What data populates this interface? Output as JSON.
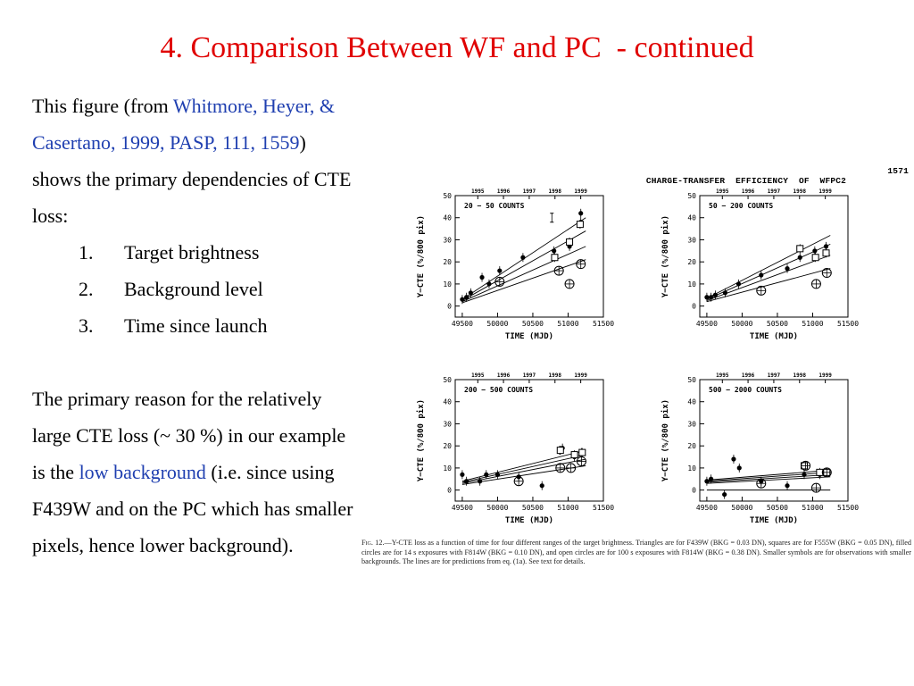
{
  "slide": {
    "title": "4. Comparison Between WF and PC  - continued",
    "intro_before": "This figure (from ",
    "intro_link": "Whitmore, Heyer, & Casertano, 1999, PASP, 111, 1559",
    "intro_after": ") shows the primary dependencies of CTE loss:",
    "list": [
      {
        "num": "1.",
        "text": "Target brightness"
      },
      {
        "num": "2.",
        "text": "Background level"
      },
      {
        "num": "3.",
        "text": "Time since launch"
      }
    ],
    "reason_before": "The primary reason for the relatively large CTE loss (~ 30 %) in our example is the ",
    "reason_link": "low background",
    "reason_after": " (i.e. since using F439W and on the PC which has smaller pixels, hence lower background).",
    "colors": {
      "title": "#e00000",
      "link": "#1f3fb0"
    }
  },
  "paper": {
    "header": "CHARGE-TRANSFER  EFFICIENCY  OF  WFPC2",
    "page": "1571",
    "caption_label": "Fig. 12.",
    "caption": "—Y-CTE loss as a function of time for four different ranges of the target brightness. Triangles are for F439W (BKG = 0.03 DN), squares are for F555W (BKG = 0.05 DN), filled circles are for 14 s exposures with F814W (BKG = 0.10 DN), and open circles are for 100 s exposures with F814W (BKG = 0.38 DN). Smaller symbols are for observations with smaller backgrounds. The lines are for predictions from eq. (1a). See text for details."
  },
  "chart_data": [
    {
      "type": "scatter",
      "title": "20 − 50 COUNTS",
      "xlabel": "TIME (MJD)",
      "ylabel": "Y−CTE (%/800 pix)",
      "xlim": [
        49400,
        51500
      ],
      "ylim": [
        -5,
        50
      ],
      "xticks": [
        49500,
        50000,
        50500,
        51000,
        51500
      ],
      "yticks": [
        0,
        10,
        20,
        30,
        40,
        50
      ],
      "top_axis_labels": [
        "1995",
        "1996",
        "1997",
        "1998",
        "1999"
      ],
      "top_axis_positions": [
        49720,
        50084,
        50449,
        50814,
        51179
      ],
      "series": [
        {
          "marker": "filled",
          "points": [
            [
              49500,
              3
            ],
            [
              49560,
              4
            ],
            [
              49620,
              6
            ],
            [
              49780,
              13
            ],
            [
              49880,
              10
            ],
            [
              50030,
              16
            ],
            [
              50360,
              22
            ],
            [
              50800,
              25
            ],
            [
              51020,
              27
            ],
            [
              51180,
              42
            ],
            [
              51180,
              38
            ]
          ]
        },
        {
          "marker": "open-square",
          "points": [
            [
              50810,
              22
            ],
            [
              51020,
              29
            ],
            [
              51170,
              37
            ]
          ]
        },
        {
          "marker": "open-circle",
          "points": [
            [
              50030,
              11
            ],
            [
              50870,
              16
            ],
            [
              51020,
              10
            ],
            [
              51180,
              19
            ]
          ]
        },
        {
          "marker": "error-bar",
          "points": [
            [
              50770,
              40
            ]
          ]
        }
      ],
      "lines": [
        [
          49500,
          3,
          51250,
          40
        ],
        [
          49500,
          2.5,
          51250,
          34
        ],
        [
          49500,
          2,
          51250,
          27
        ],
        [
          49500,
          1.5,
          51250,
          21
        ]
      ],
      "grid": false
    },
    {
      "type": "scatter",
      "title": "50 − 200 COUNTS",
      "xlabel": "TIME (MJD)",
      "ylabel": "Y−CTE (%/800 pix)",
      "xlim": [
        49400,
        51500
      ],
      "ylim": [
        -5,
        50
      ],
      "xticks": [
        49500,
        50000,
        50500,
        51000,
        51500
      ],
      "yticks": [
        0,
        10,
        20,
        30,
        40,
        50
      ],
      "top_axis_labels": [
        "1995",
        "1996",
        "1997",
        "1998",
        "1999"
      ],
      "top_axis_positions": [
        49720,
        50084,
        50449,
        50814,
        51179
      ],
      "series": [
        {
          "marker": "filled",
          "points": [
            [
              49500,
              4
            ],
            [
              49560,
              4
            ],
            [
              49620,
              5
            ],
            [
              49760,
              6
            ],
            [
              49950,
              10
            ],
            [
              50270,
              14
            ],
            [
              50640,
              17
            ],
            [
              50820,
              22
            ],
            [
              51030,
              25
            ],
            [
              51190,
              27
            ]
          ]
        },
        {
          "marker": "open-square",
          "points": [
            [
              50820,
              26
            ],
            [
              51040,
              22
            ],
            [
              51190,
              24
            ]
          ]
        },
        {
          "marker": "open-circle",
          "points": [
            [
              50270,
              7
            ],
            [
              51050,
              10
            ],
            [
              51200,
              15
            ]
          ]
        }
      ],
      "lines": [
        [
          49500,
          3.5,
          51250,
          32
        ],
        [
          49500,
          3,
          51250,
          28
        ],
        [
          49500,
          2.5,
          51250,
          23
        ],
        [
          49500,
          2,
          51250,
          17
        ]
      ],
      "grid": false
    },
    {
      "type": "scatter",
      "title": "200 − 500 COUNTS",
      "xlabel": "TIME (MJD)",
      "ylabel": "Y−CTE (%/800 pix)",
      "xlim": [
        49400,
        51500
      ],
      "ylim": [
        -5,
        50
      ],
      "xticks": [
        49500,
        50000,
        50500,
        51000,
        51500
      ],
      "yticks": [
        0,
        10,
        20,
        30,
        40,
        50
      ],
      "top_axis_labels": [
        "1995",
        "1996",
        "1997",
        "1998",
        "1999"
      ],
      "top_axis_positions": [
        49720,
        50084,
        50449,
        50814,
        51179
      ],
      "series": [
        {
          "marker": "filled",
          "points": [
            [
              49500,
              7
            ],
            [
              49560,
              4
            ],
            [
              49750,
              4
            ],
            [
              49840,
              7
            ],
            [
              50000,
              7
            ],
            [
              50300,
              6
            ],
            [
              50630,
              2
            ],
            [
              50880,
              18
            ],
            [
              50920,
              19
            ],
            [
              51090,
              15
            ],
            [
              51190,
              17
            ]
          ]
        },
        {
          "marker": "open-square",
          "points": [
            [
              50890,
              18
            ],
            [
              51090,
              16
            ],
            [
              51200,
              17
            ]
          ]
        },
        {
          "marker": "open-circle",
          "points": [
            [
              50300,
              4
            ],
            [
              50890,
              10
            ],
            [
              51040,
              10
            ],
            [
              51190,
              13
            ]
          ]
        }
      ],
      "lines": [
        [
          49500,
          4,
          51250,
          18
        ],
        [
          49500,
          3.5,
          51250,
          16
        ],
        [
          49500,
          3,
          51250,
          14
        ],
        [
          49500,
          2.5,
          51250,
          11
        ]
      ],
      "grid": false
    },
    {
      "type": "scatter",
      "title": "500 − 2000 COUNTS",
      "xlabel": "TIME (MJD)",
      "ylabel": "Y−CTE (%/800 pix)",
      "xlim": [
        49400,
        51500
      ],
      "ylim": [
        -5,
        50
      ],
      "xticks": [
        49500,
        50000,
        50500,
        51000,
        51500
      ],
      "yticks": [
        0,
        10,
        20,
        30,
        40,
        50
      ],
      "top_axis_labels": [
        "1995",
        "1996",
        "1997",
        "1998",
        "1999"
      ],
      "top_axis_positions": [
        49720,
        50084,
        50449,
        50814,
        51179
      ],
      "series": [
        {
          "marker": "filled",
          "points": [
            [
              49500,
              4
            ],
            [
              49560,
              5
            ],
            [
              49750,
              -2
            ],
            [
              49880,
              14
            ],
            [
              49960,
              10
            ],
            [
              50270,
              4
            ],
            [
              50640,
              2
            ],
            [
              50880,
              7
            ],
            [
              51100,
              7
            ],
            [
              51190,
              8
            ]
          ]
        },
        {
          "marker": "open-square",
          "points": [
            [
              50880,
              11
            ],
            [
              51100,
              8
            ],
            [
              51200,
              8
            ]
          ]
        },
        {
          "marker": "open-circle",
          "points": [
            [
              50270,
              3
            ],
            [
              50900,
              11
            ],
            [
              51050,
              1
            ],
            [
              51200,
              8
            ]
          ]
        }
      ],
      "lines": [
        [
          49500,
          4.5,
          51250,
          9
        ],
        [
          49500,
          4,
          51250,
          8
        ],
        [
          49500,
          3.5,
          51250,
          7
        ],
        [
          49500,
          3,
          51250,
          6
        ],
        [
          49500,
          0,
          51250,
          0
        ]
      ],
      "grid": false
    }
  ]
}
